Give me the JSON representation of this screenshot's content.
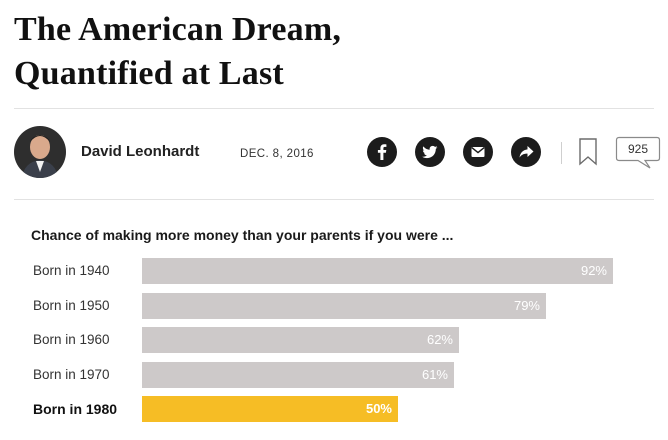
{
  "article": {
    "headline_line1": "The American Dream,",
    "headline_line2": "Quantified at Last",
    "author": "David Leonhardt",
    "date": "DEC. 8, 2016"
  },
  "share": {
    "icons": [
      "facebook-icon",
      "twitter-icon",
      "email-icon",
      "share-icon"
    ],
    "bookmark_icon": "bookmark-icon",
    "comment_count": "925"
  },
  "chart_data": {
    "type": "bar",
    "orientation": "horizontal",
    "title": "Chance of making more money than your parents if you were ...",
    "categories": [
      "Born in 1940",
      "Born in 1950",
      "Born in 1960",
      "Born in 1970",
      "Born in 1980"
    ],
    "values": [
      92,
      79,
      62,
      61,
      50
    ],
    "value_labels": [
      "92%",
      "79%",
      "62%",
      "61%",
      "50%"
    ],
    "unit": "%",
    "xlim": [
      0,
      100
    ],
    "highlight_index": 4,
    "colors": {
      "bar": "#cdc9c9",
      "highlight": "#f6bd25",
      "value_text": "#ffffff"
    },
    "grid": false
  }
}
